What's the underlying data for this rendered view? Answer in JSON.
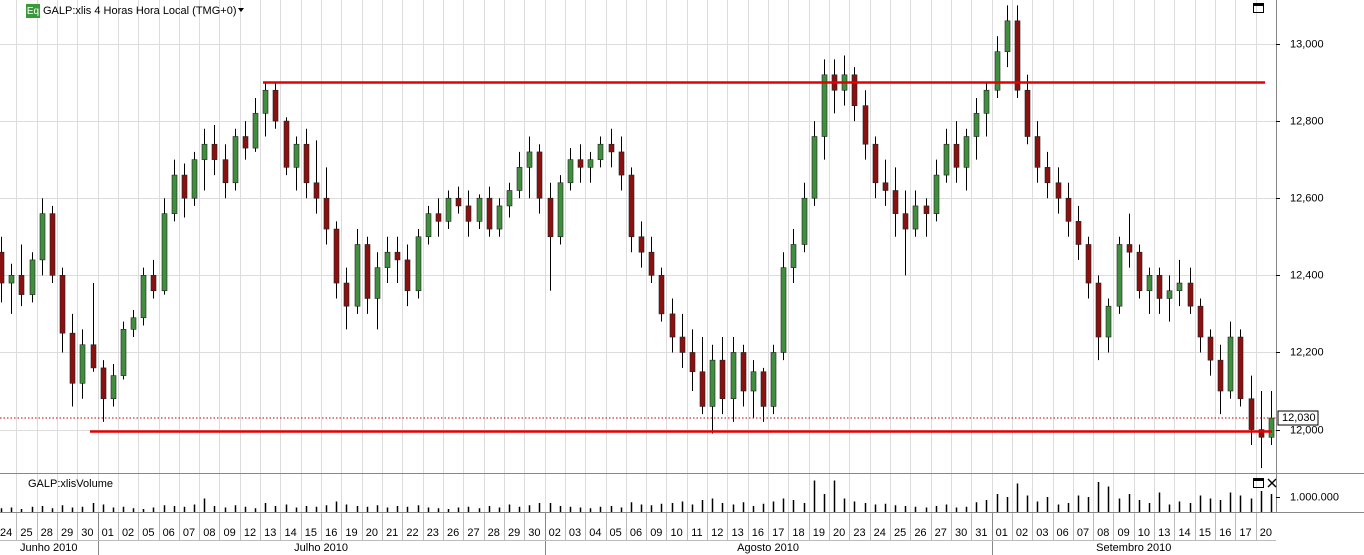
{
  "chart_data": {
    "type": "candlestick",
    "title": "GALP:xlis 4 Horas Hora Local (TMG+0)",
    "badge": "Eq",
    "volume_title": "GALP:xlisVolume",
    "categories": [
      "24",
      "25",
      "28",
      "29",
      "30",
      "01",
      "02",
      "05",
      "06",
      "07",
      "08",
      "09",
      "12",
      "13",
      "14",
      "15",
      "16",
      "19",
      "20",
      "21",
      "22",
      "23",
      "26",
      "27",
      "28",
      "29",
      "30",
      "02",
      "03",
      "04",
      "05",
      "06",
      "09",
      "10",
      "11",
      "12",
      "13",
      "16",
      "17",
      "18",
      "19",
      "20",
      "23",
      "24",
      "25",
      "26",
      "27",
      "30",
      "31",
      "01",
      "02",
      "03",
      "06",
      "07",
      "08",
      "09",
      "10",
      "13",
      "14",
      "15",
      "16",
      "17",
      "20"
    ],
    "months": [
      "Junho 2010",
      "Julho 2010",
      "Agosto 2010",
      "Setembro 2010"
    ],
    "ohlc": [
      [
        12460,
        12500,
        12330,
        12380
      ],
      [
        12380,
        12430,
        12300,
        12400
      ],
      [
        12400,
        12480,
        12320,
        12350
      ],
      [
        12350,
        12460,
        12330,
        12440
      ],
      [
        12440,
        12600,
        12400,
        12560
      ],
      [
        12560,
        12580,
        12380,
        12400
      ],
      [
        12400,
        12420,
        12200,
        12250
      ],
      [
        12250,
        12300,
        12060,
        12120
      ],
      [
        12120,
        12260,
        12080,
        12220
      ],
      [
        12220,
        12380,
        12150,
        12160
      ],
      [
        12160,
        12180,
        12020,
        12080
      ],
      [
        12080,
        12170,
        12060,
        12140
      ],
      [
        12140,
        12280,
        12130,
        12260
      ],
      [
        12260,
        12310,
        12240,
        12290
      ],
      [
        12290,
        12420,
        12270,
        12400
      ],
      [
        12400,
        12440,
        12340,
        12360
      ],
      [
        12360,
        12600,
        12350,
        12560
      ],
      [
        12560,
        12700,
        12540,
        12660
      ],
      [
        12660,
        12690,
        12550,
        12600
      ],
      [
        12600,
        12720,
        12580,
        12700
      ],
      [
        12700,
        12780,
        12620,
        12740
      ],
      [
        12740,
        12790,
        12660,
        12700
      ],
      [
        12700,
        12740,
        12600,
        12640
      ],
      [
        12640,
        12780,
        12620,
        12760
      ],
      [
        12760,
        12800,
        12700,
        12730
      ],
      [
        12730,
        12860,
        12720,
        12820
      ],
      [
        12820,
        12900,
        12760,
        12880
      ],
      [
        12880,
        12900,
        12780,
        12800
      ],
      [
        12800,
        12810,
        12660,
        12680
      ],
      [
        12680,
        12760,
        12620,
        12740
      ],
      [
        12740,
        12780,
        12600,
        12640
      ],
      [
        12640,
        12750,
        12560,
        12600
      ],
      [
        12600,
        12680,
        12480,
        12520
      ],
      [
        12520,
        12540,
        12340,
        12380
      ],
      [
        12380,
        12420,
        12260,
        12320
      ],
      [
        12320,
        12520,
        12300,
        12480
      ],
      [
        12480,
        12500,
        12300,
        12340
      ],
      [
        12340,
        12460,
        12260,
        12420
      ],
      [
        12420,
        12500,
        12380,
        12460
      ],
      [
        12460,
        12500,
        12380,
        12440
      ],
      [
        12440,
        12480,
        12320,
        12360
      ],
      [
        12360,
        12520,
        12340,
        12500
      ],
      [
        12500,
        12580,
        12480,
        12560
      ],
      [
        12560,
        12600,
        12500,
        12540
      ],
      [
        12540,
        12620,
        12520,
        12600
      ],
      [
        12600,
        12630,
        12560,
        12580
      ],
      [
        12580,
        12620,
        12500,
        12540
      ],
      [
        12540,
        12610,
        12520,
        12600
      ],
      [
        12600,
        12630,
        12500,
        12520
      ],
      [
        12520,
        12600,
        12500,
        12580
      ],
      [
        12580,
        12640,
        12550,
        12620
      ],
      [
        12620,
        12720,
        12600,
        12680
      ],
      [
        12680,
        12760,
        12600,
        12720
      ],
      [
        12720,
        12740,
        12560,
        12600
      ],
      [
        12600,
        12640,
        12360,
        12500
      ],
      [
        12500,
        12660,
        12480,
        12640
      ],
      [
        12640,
        12730,
        12620,
        12700
      ],
      [
        12700,
        12740,
        12640,
        12680
      ],
      [
        12680,
        12720,
        12640,
        12700
      ],
      [
        12700,
        12760,
        12680,
        12740
      ],
      [
        12740,
        12780,
        12680,
        12720
      ],
      [
        12720,
        12760,
        12620,
        12660
      ],
      [
        12660,
        12680,
        12460,
        12500
      ],
      [
        12500,
        12540,
        12420,
        12460
      ],
      [
        12460,
        12500,
        12380,
        12400
      ],
      [
        12400,
        12420,
        12280,
        12300
      ],
      [
        12300,
        12340,
        12200,
        12240
      ],
      [
        12240,
        12300,
        12160,
        12200
      ],
      [
        12200,
        12260,
        12100,
        12150
      ],
      [
        12150,
        12240,
        12040,
        12060
      ],
      [
        12060,
        12220,
        11990,
        12180
      ],
      [
        12180,
        12240,
        12040,
        12080
      ],
      [
        12080,
        12240,
        12020,
        12200
      ],
      [
        12200,
        12220,
        12060,
        12100
      ],
      [
        12100,
        12180,
        12030,
        12150
      ],
      [
        12150,
        12160,
        12020,
        12060
      ],
      [
        12060,
        12220,
        12040,
        12200
      ],
      [
        12200,
        12460,
        12180,
        12420
      ],
      [
        12420,
        12520,
        12380,
        12480
      ],
      [
        12480,
        12640,
        12460,
        12600
      ],
      [
        12600,
        12800,
        12580,
        12760
      ],
      [
        12760,
        12960,
        12700,
        12920
      ],
      [
        12920,
        12960,
        12820,
        12880
      ],
      [
        12880,
        12970,
        12840,
        12920
      ],
      [
        12920,
        12940,
        12800,
        12840
      ],
      [
        12840,
        12880,
        12700,
        12740
      ],
      [
        12740,
        12760,
        12600,
        12640
      ],
      [
        12640,
        12700,
        12580,
        12620
      ],
      [
        12620,
        12680,
        12500,
        12560
      ],
      [
        12560,
        12620,
        12400,
        12520
      ],
      [
        12520,
        12620,
        12500,
        12580
      ],
      [
        12580,
        12600,
        12500,
        12560
      ],
      [
        12560,
        12700,
        12540,
        12660
      ],
      [
        12660,
        12780,
        12640,
        12740
      ],
      [
        12740,
        12800,
        12640,
        12680
      ],
      [
        12680,
        12780,
        12620,
        12760
      ],
      [
        12760,
        12860,
        12700,
        12820
      ],
      [
        12820,
        12900,
        12760,
        12880
      ],
      [
        12880,
        13020,
        12860,
        12980
      ],
      [
        12980,
        13100,
        12940,
        13060
      ],
      [
        13060,
        13100,
        12860,
        12880
      ],
      [
        12880,
        12920,
        12740,
        12760
      ],
      [
        12760,
        12800,
        12640,
        12680
      ],
      [
        12680,
        12720,
        12600,
        12640
      ],
      [
        12640,
        12680,
        12560,
        12600
      ],
      [
        12600,
        12640,
        12500,
        12540
      ],
      [
        12540,
        12580,
        12440,
        12480
      ],
      [
        12480,
        12500,
        12340,
        12380
      ],
      [
        12380,
        12400,
        12180,
        12240
      ],
      [
        12240,
        12340,
        12200,
        12320
      ],
      [
        12320,
        12500,
        12300,
        12480
      ],
      [
        12480,
        12560,
        12420,
        12460
      ],
      [
        12460,
        12480,
        12340,
        12360
      ],
      [
        12360,
        12420,
        12300,
        12400
      ],
      [
        12400,
        12420,
        12300,
        12340
      ],
      [
        12340,
        12400,
        12280,
        12360
      ],
      [
        12360,
        12440,
        12320,
        12380
      ],
      [
        12380,
        12420,
        12300,
        12320
      ],
      [
        12320,
        12340,
        12200,
        12240
      ],
      [
        12240,
        12260,
        12140,
        12180
      ],
      [
        12180,
        12220,
        12040,
        12100
      ],
      [
        12100,
        12280,
        12080,
        12240
      ],
      [
        12240,
        12260,
        12060,
        12080
      ],
      [
        12080,
        12140,
        11960,
        12000
      ],
      [
        12000,
        12100,
        11900,
        11980
      ],
      [
        11980,
        12100,
        11960,
        12030
      ]
    ],
    "volume": [
      250000,
      300000,
      200000,
      350000,
      400000,
      250000,
      450000,
      300000,
      350000,
      600000,
      500000,
      300000,
      350000,
      250000,
      200000,
      300000,
      450000,
      400000,
      350000,
      500000,
      900000,
      400000,
      300000,
      450000,
      350000,
      250000,
      600000,
      400000,
      500000,
      300000,
      400000,
      350000,
      450000,
      700000,
      500000,
      400000,
      350000,
      450000,
      300000,
      400000,
      350000,
      450000,
      300000,
      250000,
      200000,
      300000,
      350000,
      250000,
      400000,
      300000,
      500000,
      350000,
      450000,
      600000,
      600000,
      400000,
      350000,
      300000,
      250000,
      350000,
      400000,
      300000,
      650000,
      500000,
      450000,
      550000,
      600000,
      700000,
      500000,
      800000,
      900000,
      600000,
      500000,
      650000,
      400000,
      550000,
      700000,
      900000,
      800000,
      600000,
      2100000,
      1200000,
      2100000,
      900000,
      700000,
      600000,
      500000,
      550000,
      450000,
      400000,
      350000,
      300000,
      400000,
      500000,
      300000,
      350000,
      650000,
      800000,
      1200000,
      1000000,
      1900000,
      1100000,
      700000,
      1000000,
      500000,
      600000,
      1100000,
      1000000,
      2000000,
      1700000,
      900000,
      1200000,
      800000,
      600000,
      1300000,
      500000,
      700000,
      600000,
      1100000,
      900000,
      800000,
      1300000,
      1100000,
      900000,
      1400000,
      1200000
    ],
    "up_color": "#3f8f3f",
    "down_color": "#8b1010",
    "ylim": [
      11890,
      13114
    ],
    "yticks": [
      {
        "value": 12000,
        "label": "12,000"
      },
      {
        "value": 12200,
        "label": "12,200"
      },
      {
        "value": 12400,
        "label": "12,400"
      },
      {
        "value": 12600,
        "label": "12,600"
      },
      {
        "value": 12800,
        "label": "12,800"
      },
      {
        "value": 13000,
        "label": "13,000"
      }
    ],
    "volume_ylim": [
      0,
      2400000
    ],
    "volume_ticks": [
      {
        "value": 1000000,
        "label": "1.000.000"
      }
    ],
    "last_price": {
      "value": 12030,
      "label": "12,030"
    },
    "hlines": [
      {
        "value": 12900,
        "color": "#e60000"
      },
      {
        "value": 11995,
        "color": "#e60000"
      }
    ],
    "grid": true
  }
}
